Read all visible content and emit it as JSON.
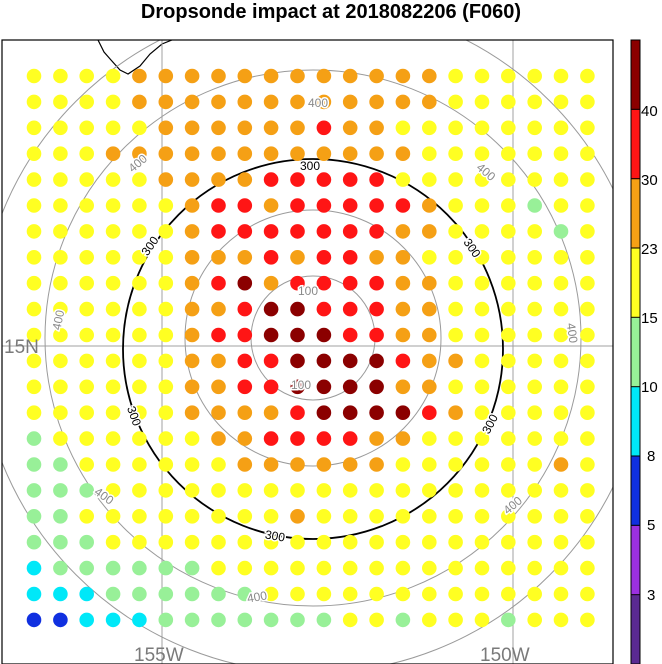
{
  "title": "Dropsonde impact at 2018082206 (F060)",
  "map": {
    "lat_labels": [
      "15N"
    ],
    "lon_labels": [
      "155W",
      "150W"
    ],
    "contour_labels_gray": [
      "100",
      "400"
    ],
    "contour_labels_black": [
      "300"
    ]
  },
  "colorbar": {
    "tick_labels": [
      "3",
      "5",
      "8",
      "10",
      "15",
      "23",
      "30",
      "40"
    ],
    "bands": [
      {
        "color": "#5a2a92"
      },
      {
        "color": "#9b30e0"
      },
      {
        "color": "#1030e0"
      },
      {
        "color": "#00e8f8"
      },
      {
        "color": "#98f098"
      },
      {
        "color": "#ffff22"
      },
      {
        "color": "#f5a015"
      },
      {
        "color": "#ff1515"
      },
      {
        "color": "#8b0000"
      }
    ]
  },
  "dot_colors": {
    "Y": "#ffff22",
    "O": "#f5a015",
    "R": "#ff1515",
    "D": "#8b0000",
    "G": "#98f098",
    "C": "#00e8f8",
    "B": "#1030e0"
  },
  "grid_rows": [
    "YYYYOOOOOOOOOOOOYYYYYY",
    "YYYYOOOOOOOOOOOOYYYYYY",
    "YYYYYOOOOOOROOYYYYYYYY",
    "YYYOOOOOOOOOOOOYYYYYYY",
    "YYYYYOOOORRRRRYYYYYYYY",
    "YYYYYYORRORRRRROYYYGYY",
    "YYYYYYORRRRRRROOYYYYGY",
    "YYYYYYOOORORROOYYYYYYY",
    "YYYYYYORDORRRROOYYYYYY",
    "YYYYYYOORDDRRROOYYYYYY",
    "YYYYYYORRDDDRROOYYYYYY",
    "YYYYYYOORRDDDDROOYYYYY",
    "YYYYYYOORRDDDDOOYYYYYY",
    "YYYYYYOOOORDDDDROYYYYY",
    "GYYYYYYOORRRROOYYYYYYY",
    "GGYYYYYYOOOOOOYYYYYYOY",
    "GGGYYYYYYYYYYYYYYYYYYY",
    "GGYYYYYYYYOYYYYYYYYYYY",
    "GGGYYYYYYYYYYYYYYYYYYY",
    "CGGGGGGYYYYYYYYYYYYYYY",
    "CCCGGGGGGYYYYYYYYYYYYY",
    "BBCCCGGGGGGGYYGYYYGYYY"
  ]
}
